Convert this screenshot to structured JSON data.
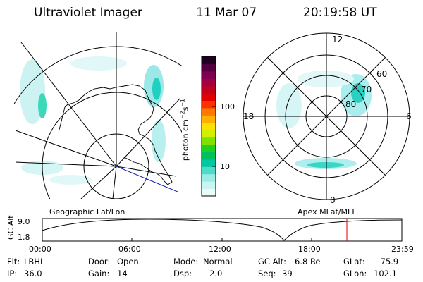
{
  "header": {
    "title": "Ultraviolet Imager",
    "date": "11 Mar 07",
    "time": "20:19:58 UT"
  },
  "colorbar": {
    "label_main": "photon cm",
    "label_exp1": "−2",
    "label_mid": "s",
    "label_exp2": "−1",
    "ticks": [
      "100",
      "10"
    ],
    "colors": [
      "#e8fcfc",
      "#c8f4f4",
      "#9cece6",
      "#4cdcc8",
      "#00c8a0",
      "#00c060",
      "#20d020",
      "#80e000",
      "#d0f000",
      "#ffe000",
      "#ffb000",
      "#ff7800",
      "#ff3000",
      "#e00000",
      "#c00020",
      "#a00040",
      "#800050",
      "#500040",
      "#200020"
    ]
  },
  "geo_panel": {
    "label": "Geographic Lat/Lon"
  },
  "apex_panel": {
    "label": "Apex MLat/MLT",
    "mlt_labels": [
      "12",
      "18",
      "6",
      "0"
    ],
    "lat_labels": [
      "60",
      "70",
      "80"
    ]
  },
  "altitude_plot": {
    "ylabel": "GC Alt",
    "yticks": [
      "9.0",
      "1.8"
    ],
    "xticks": [
      "00:00",
      "06:00",
      "12:00",
      "18:00",
      "23:59"
    ],
    "current_time_color": "#e00000"
  },
  "footer": {
    "flt_label": "Flt:",
    "flt_value": "LBHL",
    "ip_label": "IP:",
    "ip_value": "36.0",
    "door_label": "Door:",
    "door_value": "Open",
    "gain_label": "Gain:",
    "gain_value": "14",
    "mode_label": "Mode:",
    "mode_value": "Normal",
    "dsp_label": "Dsp:",
    "dsp_value": "2.0",
    "gcalt_label": "GC Alt:",
    "gcalt_value": "6.8 Re",
    "seq_label": "Seq:",
    "seq_value": "39",
    "glat_label": "GLat:",
    "glat_value": "−75.9",
    "glon_label": "GLon:",
    "glon_value": "102.1"
  }
}
